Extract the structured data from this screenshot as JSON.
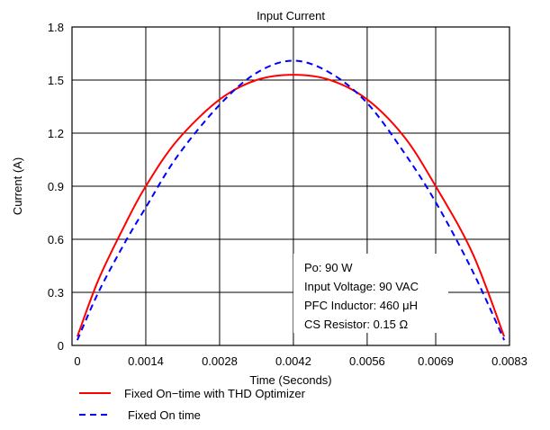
{
  "chart_data": {
    "type": "line",
    "title": "Input Current",
    "xlabel": "Time (Seconds)",
    "ylabel": "Current (A)",
    "xlim": [
      0,
      0.0083
    ],
    "ylim": [
      0,
      1.8
    ],
    "x_ticks": [
      0,
      0.0014,
      0.0028,
      0.0042,
      0.0056,
      0.0069,
      0.0083
    ],
    "x_tick_labels": [
      "0",
      "0.0014",
      "0.0028",
      "0.0042",
      "0.0056",
      "0.0069",
      "0.0083"
    ],
    "y_ticks": [
      0,
      0.3,
      0.6,
      0.9,
      1.2,
      1.5,
      1.8
    ],
    "y_tick_labels": [
      "0",
      "0.3",
      "0.6",
      "0.9",
      "1.2",
      "1.5",
      "1.8"
    ],
    "grid": true,
    "legend_placement": "bottom",
    "series": [
      {
        "name": "Fixed On−time with THD Optimizer",
        "color": "#ff0000",
        "style": "solid",
        "x": [
          0.0001,
          0.0005,
          0.001,
          0.0014,
          0.002,
          0.0028,
          0.0035,
          0.0042,
          0.0049,
          0.0056,
          0.0063,
          0.0069,
          0.0076,
          0.0082
        ],
        "y": [
          0.05,
          0.37,
          0.68,
          0.9,
          1.16,
          1.39,
          1.5,
          1.53,
          1.5,
          1.39,
          1.18,
          0.9,
          0.52,
          0.05
        ]
      },
      {
        "name": "Fixed On time",
        "color": "#0000ff",
        "style": "dashed",
        "x": [
          0.0001,
          0.0005,
          0.001,
          0.0014,
          0.002,
          0.0028,
          0.0035,
          0.0042,
          0.0049,
          0.0056,
          0.0063,
          0.0069,
          0.0076,
          0.0082
        ],
        "y": [
          0.03,
          0.3,
          0.58,
          0.78,
          1.07,
          1.36,
          1.54,
          1.61,
          1.54,
          1.37,
          1.09,
          0.81,
          0.42,
          0.03
        ]
      }
    ],
    "annotations": [
      "Po: 90 W",
      "Input Voltage: 90 VAC",
      "PFC Inductor: 460 μH",
      "CS Resistor: 0.15 Ω"
    ]
  }
}
